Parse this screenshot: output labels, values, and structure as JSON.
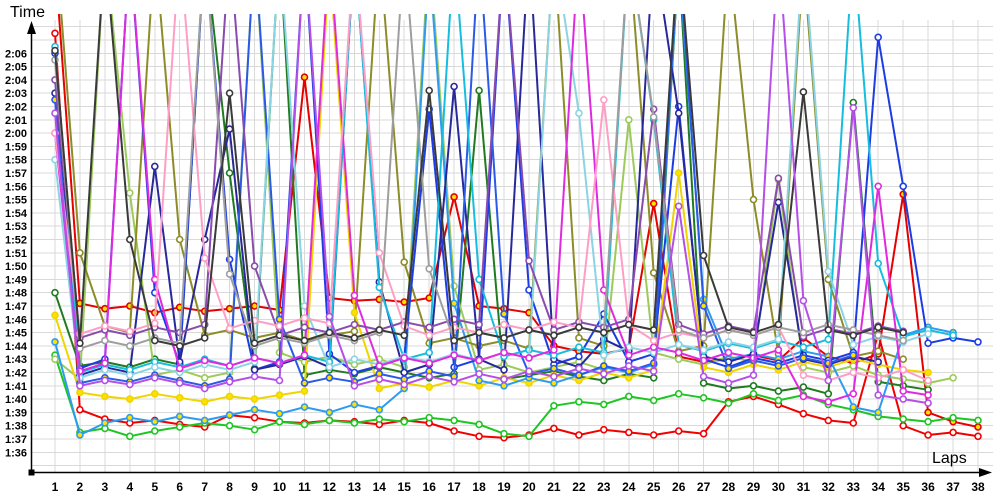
{
  "chart_data": {
    "type": "line",
    "title": "",
    "xlabel": "Laps",
    "ylabel": "Time",
    "x_ticks": [
      1,
      2,
      3,
      4,
      5,
      6,
      7,
      8,
      9,
      10,
      11,
      12,
      13,
      14,
      15,
      16,
      17,
      18,
      19,
      20,
      21,
      22,
      23,
      24,
      25,
      26,
      27,
      28,
      29,
      30,
      31,
      32,
      33,
      34,
      35,
      36,
      37,
      38
    ],
    "y_tick_labels": [
      "2:06",
      "2:05",
      "2:04",
      "2:03",
      "2:02",
      "2:01",
      "2:00",
      "1:59",
      "1:58",
      "1:57",
      "1:56",
      "1:55",
      "1:54",
      "1:53",
      "1:52",
      "1:51",
      "1:50",
      "1:49",
      "1:48",
      "1:47",
      "1:46",
      "1:45",
      "1:44",
      "1:43",
      "1:42",
      "1:41",
      "1:40",
      "1:39",
      "1:38",
      "1:37",
      "1:36"
    ],
    "y_tick_top_seconds": 126,
    "ylim_seconds": [
      96,
      126
    ],
    "grid": true,
    "axis_color": "#000000",
    "grid_color": "#d9d9d9",
    "marker_fills": {
      "white": "#ffffff",
      "yellow": "#ffe100"
    },
    "series": [
      {
        "name": "red",
        "color": "#f20000",
        "marker": "white",
        "values": [
          127.5,
          99.2,
          98.5,
          98.2,
          98.4,
          98.1,
          97.9,
          98.8,
          98.6,
          98.3,
          98.2,
          98.4,
          98.3,
          98.1,
          98.4,
          98.2,
          97.6,
          97.2,
          97.1,
          97.3,
          97.8,
          97.3,
          97.7,
          97.5,
          97.3,
          97.6,
          97.4,
          99.8,
          100.2,
          99.6,
          98.9,
          98.4,
          98.2,
          104.9,
          98.0,
          97.3,
          97.5,
          97.2
        ]
      },
      {
        "name": "red-yellow",
        "color": "#e60000",
        "marker": "yellow",
        "values": [
          133,
          107.2,
          106.8,
          107.0,
          106.5,
          106.9,
          106.6,
          106.8,
          107.0,
          106.7,
          124.2,
          107.6,
          107.4,
          107.5,
          107.3,
          107.6,
          115.2,
          107.0,
          106.8,
          106.5,
          104.0,
          103.6,
          103.4,
          103.8,
          114.7,
          103.2,
          102.8,
          103.0,
          103.3,
          102.9,
          104.6,
          103.2,
          102.7,
          103.4,
          115.4,
          99.0,
          98.3,
          97.9
        ]
      },
      {
        "name": "green",
        "color": "#1fc522",
        "marker": "white",
        "values": [
          103.3,
          97.5,
          97.8,
          97.2,
          97.6,
          97.9,
          98.2,
          98.0,
          97.7,
          98.3,
          98.1,
          98.4,
          98.2,
          98.5,
          98.3,
          98.6,
          98.4,
          98.1,
          97.4,
          97.2,
          99.5,
          99.8,
          99.6,
          100.2,
          99.9,
          100.4,
          100.1,
          99.7,
          100.4,
          99.9,
          100.3,
          99.6,
          99.2,
          98.7,
          98.5,
          98.3,
          98.6,
          98.4
        ]
      },
      {
        "name": "dark-green",
        "color": "#207a20",
        "marker": "white",
        "values": [
          108.0,
          102.5,
          102.8,
          102.4,
          103.0,
          102.6,
          134,
          117.0,
          102.3,
          134,
          101.8,
          102.2,
          101.9,
          102.4,
          102.0,
          101.6,
          101.9,
          123.2,
          101.5,
          101.8,
          102.1,
          101.7,
          101.4,
          101.9,
          101.6,
          133,
          101.2,
          100.8,
          101.0,
          100.6,
          100.9,
          100.4,
          122.3,
          101.3,
          101.0,
          100.7,
          null,
          null
        ]
      },
      {
        "name": "light-green",
        "color": "#9ccb5a",
        "marker": "white",
        "values": [
          103.0,
          101.5,
          134,
          115.5,
          101.8,
          102.2,
          101.6,
          102.0,
          134,
          103.5,
          102.8,
          103.2,
          102.6,
          103.0,
          102.4,
          134,
          108.5,
          102.2,
          102.6,
          102.0,
          102.4,
          102.8,
          102.2,
          121.0,
          103.5,
          103.0,
          102.6,
          103.2,
          102.8,
          116.5,
          102.4,
          102.0,
          102.5,
          101.8,
          101.5,
          101.2,
          101.6,
          null
        ]
      },
      {
        "name": "olive",
        "color": "#8c8c28",
        "marker": "white",
        "values": [
          135,
          111.0,
          105.5,
          105.0,
          134,
          112.0,
          104.8,
          105.2,
          104.6,
          105.0,
          104.4,
          104.8,
          105.1,
          134,
          110.3,
          104.2,
          104.6,
          104.0,
          104.4,
          103.8,
          134,
          104.6,
          104.0,
          134,
          109.5,
          103.6,
          104.0,
          133.5,
          115.0,
          103.4,
          133,
          109.0,
          103.2,
          103.6,
          103.0,
          null,
          null,
          null
        ]
      },
      {
        "name": "yellow",
        "color": "#efd500",
        "marker": "yellow",
        "values": [
          106.3,
          100.5,
          100.2,
          100.0,
          100.4,
          100.1,
          99.8,
          100.2,
          100.0,
          100.3,
          100.6,
          133,
          106.5,
          100.8,
          101.2,
          100.9,
          101.4,
          101.0,
          101.6,
          101.2,
          101.8,
          101.4,
          102.0,
          101.6,
          102.2,
          117.0,
          102.4,
          102.0,
          102.6,
          102.2,
          102.8,
          102.4,
          103.0,
          102.6,
          102.2,
          102.0,
          null,
          null
        ]
      },
      {
        "name": "sky-blue",
        "color": "#2e9bf0",
        "marker": "yellow",
        "values": [
          104.3,
          97.3,
          98.2,
          98.6,
          98.3,
          98.7,
          98.4,
          98.8,
          99.2,
          98.9,
          99.4,
          99.0,
          99.6,
          99.2,
          100.8,
          133,
          107.2,
          101.4,
          101.0,
          101.6,
          101.2,
          101.8,
          102.4,
          102.0,
          102.6,
          133,
          107.5,
          103.0,
          103.4,
          103.0,
          103.6,
          103.2,
          99.4,
          99.0,
          104.8,
          105.4,
          105.0,
          null
        ]
      },
      {
        "name": "blue",
        "color": "#1d3de3",
        "marker": "white",
        "values": [
          126.0,
          102.3,
          103.0,
          134,
          108.0,
          102.6,
          134,
          110.5,
          102.2,
          102.8,
          134,
          103.4,
          102.0,
          102.5,
          103.1,
          121.8,
          102.4,
          103.0,
          134,
          108.2,
          102.6,
          103.2,
          106.4,
          102.8,
          103.4,
          122.0,
          103.0,
          102.4,
          103.1,
          102.7,
          103.3,
          102.9,
          103.5,
          127.2,
          116.0,
          104.2,
          104.6,
          104.3
        ]
      },
      {
        "name": "navy",
        "color": "#28289b",
        "marker": "white",
        "values": [
          123.0,
          101.8,
          102.4,
          102.0,
          117.5,
          102.8,
          112.0,
          120.3,
          102.2,
          102.6,
          103.2,
          102.4,
          134,
          108.8,
          102.0,
          102.6,
          123.5,
          103.0,
          102.2,
          134,
          103.0,
          102.4,
          104.5,
          103.6,
          134,
          121.5,
          103.2,
          102.8,
          103.4,
          114.8,
          103.0,
          102.6,
          103.2,
          102.8,
          null,
          null,
          null,
          null
        ]
      },
      {
        "name": "royal-blue",
        "color": "#2b59e8",
        "marker": "yellow",
        "values": [
          122.5,
          101.2,
          101.6,
          101.3,
          101.8,
          101.4,
          101.0,
          101.5,
          134,
          106.0,
          101.2,
          101.6,
          101.3,
          101.9,
          101.5,
          102.1,
          101.7,
          134,
          106.4,
          101.9,
          102.3,
          101.8,
          102.5,
          102.1,
          102.7,
          134,
          107.0,
          102.3,
          102.9,
          102.5,
          103.1,
          102.7,
          103.3,
          null,
          null,
          null,
          null,
          null
        ]
      },
      {
        "name": "cyan",
        "color": "#16bdde",
        "marker": "white",
        "values": [
          126.5,
          102.0,
          102.6,
          102.2,
          102.8,
          102.4,
          103.0,
          102.5,
          103.1,
          102.7,
          103.3,
          102.8,
          134,
          108.4,
          103.0,
          103.5,
          134,
          109.0,
          103.2,
          103.7,
          103.3,
          103.9,
          103.5,
          134,
          121.0,
          104.1,
          103.6,
          104.2,
          103.8,
          104.4,
          103.9,
          104.5,
          134,
          110.2,
          104.7,
          105.2,
          104.8,
          null
        ]
      },
      {
        "name": "light-cyan",
        "color": "#8ad4e4",
        "marker": "white",
        "values": [
          118.0,
          101.6,
          102.2,
          101.8,
          102.4,
          102.0,
          102.6,
          102.2,
          102.8,
          134,
          107.0,
          102.4,
          103.0,
          102.6,
          103.2,
          102.8,
          103.4,
          102.9,
          103.5,
          103.1,
          134,
          121.5,
          103.3,
          103.9,
          103.5,
          104.1,
          103.7,
          104.3,
          103.9,
          104.5,
          134,
          109.6,
          104.1,
          104.7,
          104.3,
          104.9,
          null,
          null
        ]
      },
      {
        "name": "magenta",
        "color": "#e02adf",
        "marker": "white",
        "values": [
          120.0,
          102.1,
          102.7,
          134,
          109.0,
          102.3,
          102.9,
          102.5,
          103.1,
          102.7,
          103.3,
          134,
          107.8,
          102.5,
          103.1,
          102.7,
          103.3,
          102.9,
          103.5,
          103.1,
          103.7,
          134,
          108.2,
          103.3,
          103.9,
          103.5,
          102.9,
          103.5,
          103.1,
          103.7,
          100.2,
          99.8,
          100.4,
          116.0,
          100.6,
          100.3,
          null,
          null
        ]
      },
      {
        "name": "purple",
        "color": "#8a4bae",
        "marker": "white",
        "values": [
          124.0,
          104.6,
          105.2,
          104.8,
          105.4,
          105.0,
          105.6,
          134,
          110.0,
          104.8,
          105.4,
          105.0,
          105.6,
          105.2,
          105.8,
          105.4,
          106.0,
          105.6,
          134,
          110.4,
          105.2,
          105.8,
          105.4,
          106.0,
          121.8,
          105.6,
          104.9,
          105.5,
          105.1,
          116.6,
          104.7,
          105.3,
          104.9,
          105.5,
          105.1,
          null,
          null,
          null
        ]
      },
      {
        "name": "pink",
        "color": "#ff9ec4",
        "marker": "white",
        "values": [
          120.0,
          104.9,
          105.5,
          105.1,
          105.7,
          134,
          110.6,
          105.3,
          105.9,
          105.5,
          106.1,
          105.7,
          134,
          111.0,
          105.5,
          104.8,
          105.4,
          105.0,
          105.6,
          105.2,
          105.8,
          105.4,
          122.5,
          105.6,
          104.4,
          105.0,
          104.6,
          105.2,
          104.8,
          105.4,
          101.8,
          101.4,
          102.0,
          101.6,
          102.2,
          101.4,
          null,
          null
        ]
      },
      {
        "name": "gray",
        "color": "#9e9e9e",
        "marker": "white",
        "values": [
          125.5,
          103.8,
          104.4,
          104.0,
          104.6,
          104.2,
          134,
          109.4,
          104.0,
          104.6,
          104.2,
          104.8,
          104.4,
          105.0,
          134,
          109.8,
          104.4,
          105.0,
          104.6,
          105.2,
          104.8,
          105.4,
          105.0,
          134,
          121.2,
          105.2,
          104.6,
          105.2,
          104.8,
          105.4,
          105.0,
          105.6,
          105.2,
          104.8,
          104.4,
          null,
          null,
          null
        ]
      },
      {
        "name": "charcoal",
        "color": "#3a3a3a",
        "marker": "white",
        "values": [
          126.2,
          104.2,
          134,
          112.0,
          104.4,
          104.0,
          104.6,
          123.0,
          104.2,
          104.8,
          104.4,
          105.0,
          104.6,
          105.2,
          104.8,
          123.2,
          104.4,
          105.0,
          104.6,
          105.2,
          104.8,
          105.4,
          105.0,
          105.6,
          105.2,
          134,
          110.8,
          105.4,
          105.0,
          105.6,
          123.1,
          105.2,
          104.8,
          105.4,
          105.0,
          null,
          null,
          null
        ]
      },
      {
        "name": "violet",
        "color": "#b44fe8",
        "marker": "white",
        "values": [
          121.5,
          101.0,
          101.4,
          101.1,
          101.6,
          101.2,
          100.8,
          101.3,
          101.7,
          101.4,
          134,
          106.2,
          101.0,
          101.5,
          101.1,
          101.7,
          101.3,
          101.9,
          101.5,
          102.1,
          101.7,
          102.3,
          101.9,
          102.5,
          102.1,
          114.5,
          101.7,
          101.2,
          101.8,
          134,
          107.4,
          101.4,
          121.9,
          100.3,
          100.0,
          99.7,
          null,
          null
        ]
      }
    ]
  }
}
